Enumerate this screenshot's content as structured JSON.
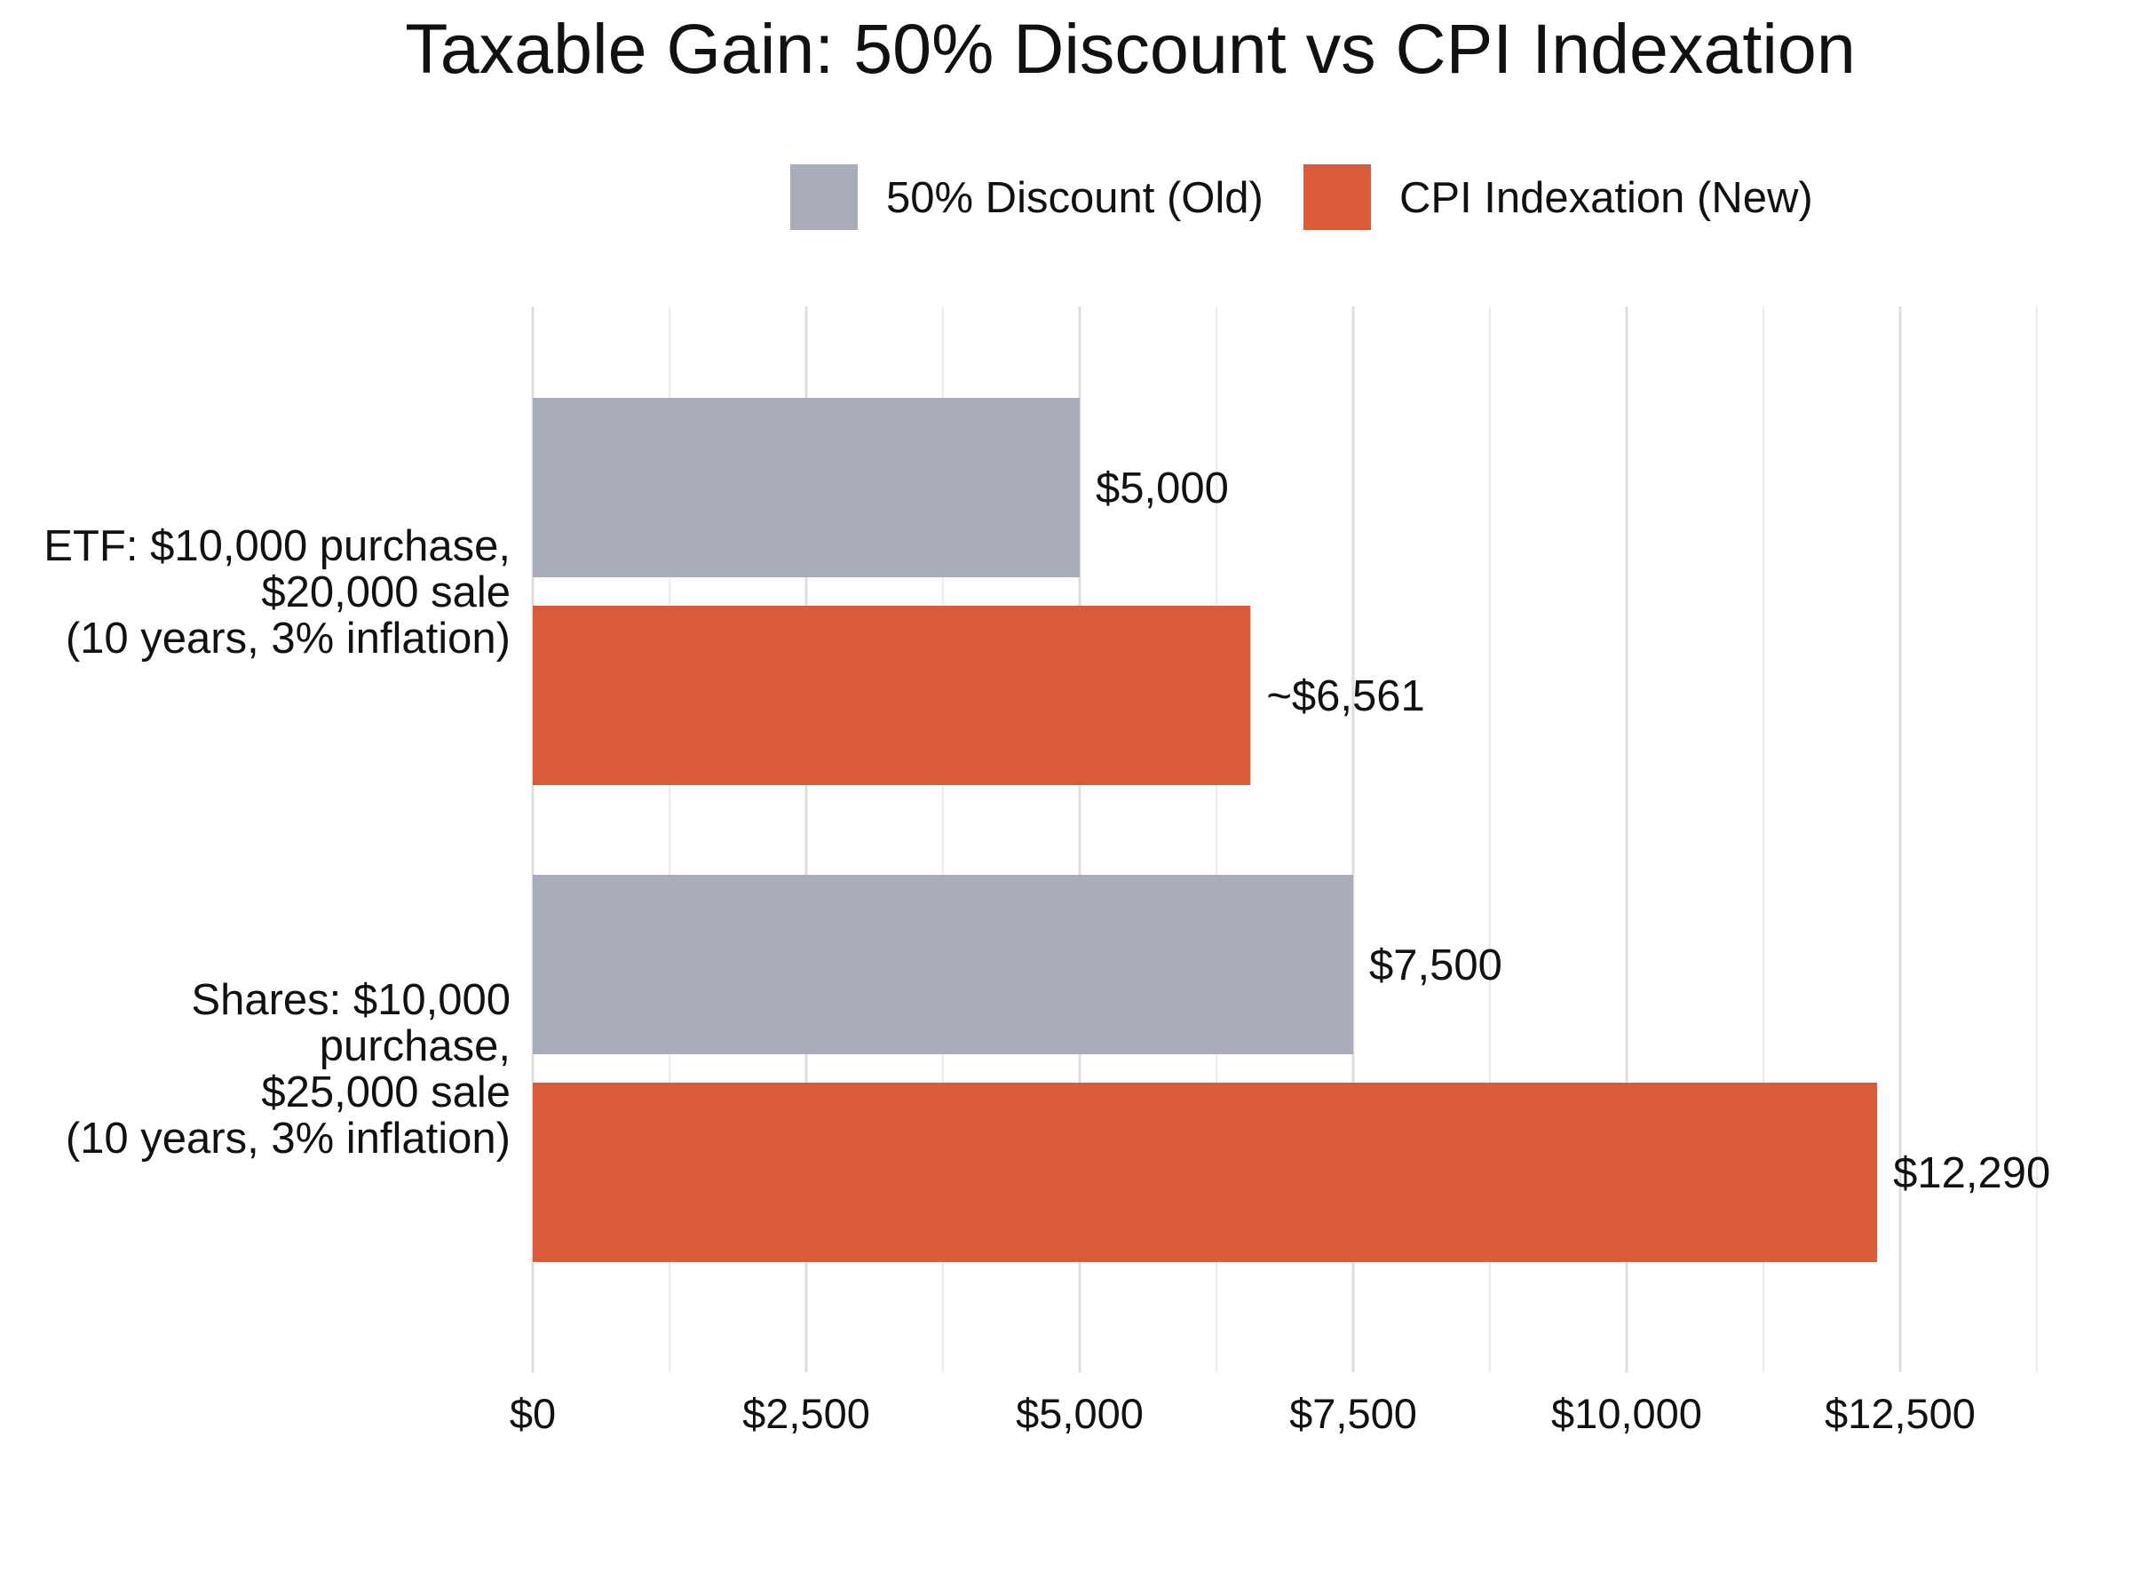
{
  "chart_data": {
    "type": "bar",
    "orientation": "horizontal",
    "title": "Taxable Gain: 50% Discount vs CPI Indexation",
    "xlabel": "",
    "ylabel": "",
    "xlim": [
      0,
      13750
    ],
    "grid": true,
    "legend_position": "top-right",
    "x_ticks": [
      0,
      2500,
      5000,
      7500,
      10000,
      12500
    ],
    "x_tick_labels": [
      "$0",
      "$2,500",
      "$5,000",
      "$7,500",
      "$10,000",
      "$12,500"
    ],
    "categories": [
      [
        "ETF: $10,000 purchase,",
        "$20,000 sale",
        "(10 years, 3% inflation)"
      ],
      [
        "Shares: $10,000",
        "purchase,",
        "$25,000 sale",
        "(10 years, 3% inflation)"
      ]
    ],
    "series": [
      {
        "name": "50% Discount (Old)",
        "color": "#a9adbb",
        "values": [
          5000,
          7500
        ],
        "labels": [
          "$5,000",
          "$7,500"
        ]
      },
      {
        "name": "CPI Indexation (New)",
        "color": "#d95b3b",
        "values": [
          6561,
          12290
        ],
        "labels": [
          "~$6,561",
          "$12,290"
        ]
      }
    ]
  }
}
